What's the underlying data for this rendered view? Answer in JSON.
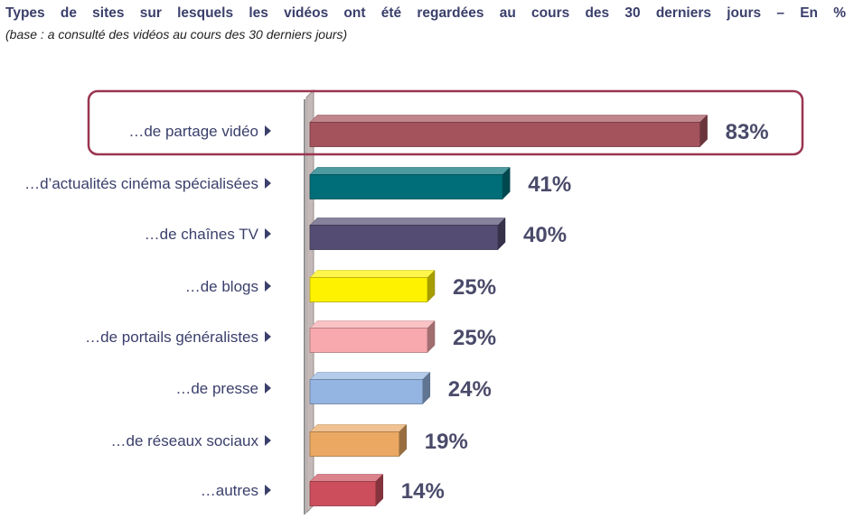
{
  "header": {
    "title": "Types de sites sur lesquels les vidéos ont été regardées au cours des 30 derniers jours   – En %",
    "subtitle": "(base : a consulté des vidéos au cours des 30 derniers jours)"
  },
  "chart_data": {
    "type": "bar",
    "orientation": "horizontal",
    "title": "Types de sites sur lesquels les vidéos ont été regardées au cours des 30 derniers jours   – En %",
    "subtitle": "(base : a consulté des vidéos au cours des 30 derniers jours)",
    "xlabel": "",
    "ylabel": "",
    "unit": "%",
    "xlim": [
      0,
      100
    ],
    "grid": false,
    "categories": [
      "…de partage vidéo",
      "…d’actualités cinéma spécialisées",
      "…de chaînes TV",
      "…de blogs",
      "…de portails généralistes",
      "…de presse",
      "…de réseaux sociaux",
      "…autres"
    ],
    "values": [
      83,
      41,
      40,
      25,
      25,
      24,
      19,
      14
    ],
    "value_labels": [
      "83%",
      "41%",
      "40%",
      "25%",
      "25%",
      "24%",
      "19%",
      "14%"
    ],
    "colors": [
      "#a4525c",
      "#006e78",
      "#544c72",
      "#fff200",
      "#f7a9ad",
      "#94b4e1",
      "#eaa862",
      "#cc4e5c"
    ],
    "highlighted_category": "…de partage vidéo",
    "highlight_color": "#9a3550"
  }
}
